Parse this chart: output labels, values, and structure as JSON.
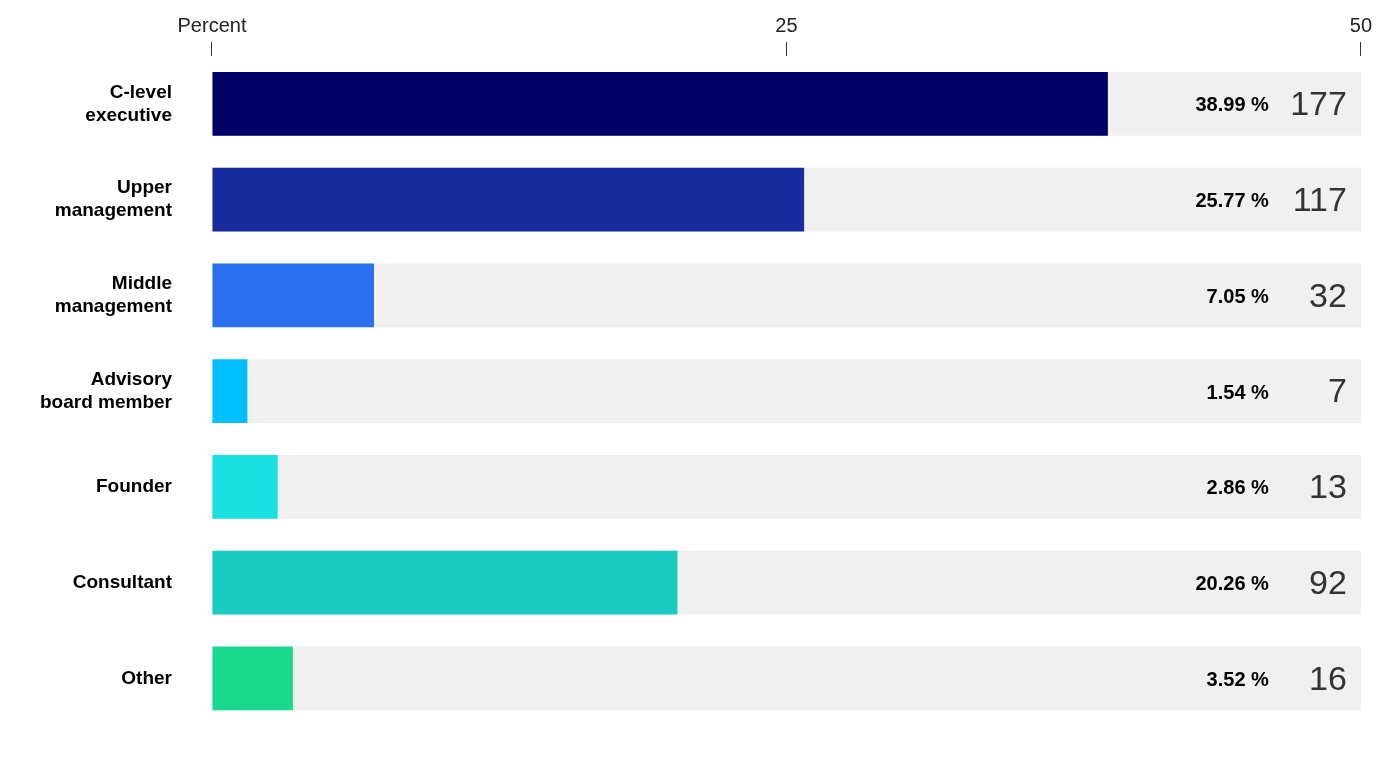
{
  "chart_data": {
    "type": "bar",
    "orientation": "horizontal",
    "categories": [
      "C-level executive",
      "Upper management",
      "Middle management",
      "Advisory board member",
      "Founder",
      "Consultant",
      "Other"
    ],
    "values": [
      38.99,
      25.77,
      7.05,
      1.54,
      2.86,
      20.26,
      3.52
    ],
    "colors": [
      "#000066",
      "#172b9c",
      "#2a6ff0",
      "#00bfff",
      "#1adfe0",
      "#1acbc0",
      "#1ad98f"
    ],
    "value_labels": [
      "38.99 %",
      "25.77 %",
      "7.05 %",
      "1.54 %",
      "2.86 %",
      "20.26 %",
      "3.52 %"
    ],
    "annotations": [
      "177",
      "117",
      "32",
      "7",
      "13",
      "92",
      "16"
    ],
    "xlim": [
      0,
      50
    ],
    "xticks": [
      {
        "value": 0,
        "label": "Percent"
      },
      25,
      50
    ],
    "grid": false,
    "legend": false
  }
}
